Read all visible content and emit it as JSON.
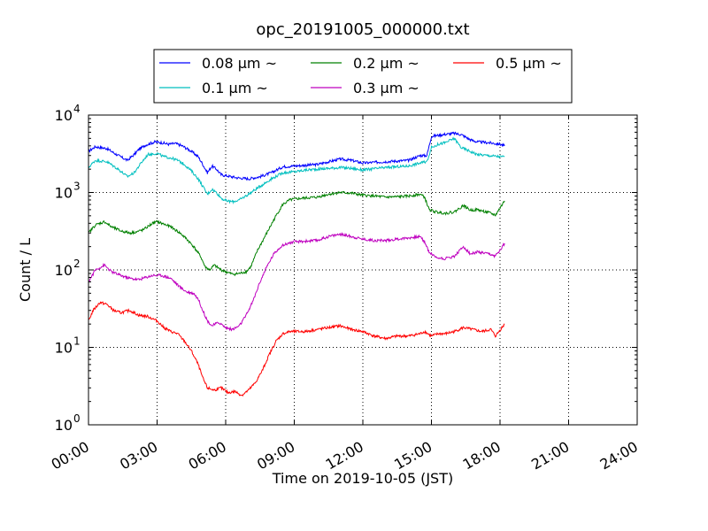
{
  "chart_data": {
    "type": "line",
    "title": "opc_20191005_000000.txt",
    "xlabel": "Time on 2019-10-05 (JST)",
    "ylabel": "Count / L",
    "x_unit": "hours",
    "xlim": [
      0,
      24
    ],
    "ylim": [
      1,
      10000
    ],
    "yscale": "log",
    "grid": true,
    "legend_position": "top-center",
    "x_ticks": [
      0,
      3,
      6,
      9,
      12,
      15,
      18,
      21,
      24
    ],
    "x_tick_labels": [
      "00:00",
      "03:00",
      "06:00",
      "09:00",
      "12:00",
      "15:00",
      "18:00",
      "21:00",
      "24:00"
    ],
    "y_ticks": [
      1,
      10,
      100,
      1000,
      10000
    ],
    "y_tick_labels": [
      {
        "base": "10",
        "exp": "0"
      },
      {
        "base": "10",
        "exp": "1"
      },
      {
        "base": "10",
        "exp": "2"
      },
      {
        "base": "10",
        "exp": "3"
      },
      {
        "base": "10",
        "exp": "4"
      }
    ],
    "series": [
      {
        "name": "0.08 μm ~",
        "color": "#0000ff",
        "x": [
          0,
          0.3,
          0.8,
          1.3,
          1.7,
          2.0,
          2.2,
          2.5,
          2.9,
          3.2,
          3.5,
          3.8,
          4.1,
          4.5,
          4.8,
          5.0,
          5.2,
          5.4,
          5.6,
          5.8,
          6.0,
          6.5,
          7.0,
          7.5,
          8.0,
          8.5,
          9.0,
          10.0,
          11.0,
          11.5,
          12.0,
          13.0,
          14.0,
          14.5,
          14.8,
          15.0,
          15.5,
          16.0,
          16.3,
          16.7,
          17.0,
          17.5,
          18.0,
          18.2
        ],
        "y": [
          3400,
          3900,
          3700,
          3000,
          2600,
          3100,
          3600,
          4100,
          4500,
          4400,
          4200,
          4300,
          4000,
          3400,
          2900,
          2300,
          1800,
          2200,
          2000,
          1700,
          1650,
          1550,
          1500,
          1600,
          1800,
          2150,
          2200,
          2300,
          2700,
          2600,
          2400,
          2500,
          2600,
          3000,
          3000,
          5300,
          5600,
          5800,
          5600,
          4800,
          4500,
          4400,
          4200,
          4000
        ]
      },
      {
        "name": "0.1 μm ~",
        "color": "#00bfbf",
        "x": [
          0,
          0.3,
          0.8,
          1.3,
          1.7,
          2.0,
          2.3,
          2.6,
          3.0,
          3.3,
          3.6,
          3.9,
          4.2,
          4.5,
          4.8,
          5.0,
          5.2,
          5.4,
          5.6,
          5.8,
          6.0,
          6.3,
          6.6,
          7.0,
          7.5,
          8.0,
          8.5,
          9.0,
          9.5,
          10.0,
          11.0,
          11.5,
          12.0,
          13.0,
          14.0,
          14.5,
          14.8,
          15.0,
          15.3,
          15.6,
          16.0,
          16.3,
          16.6,
          17.0,
          17.5,
          18.0,
          18.2
        ],
        "y": [
          2100,
          2600,
          2500,
          2000,
          1600,
          1800,
          2400,
          3100,
          3200,
          2900,
          2800,
          2600,
          2300,
          1900,
          1500,
          1200,
          950,
          1100,
          1000,
          850,
          780,
          760,
          800,
          950,
          1200,
          1500,
          1800,
          1850,
          1950,
          2000,
          2100,
          2050,
          1950,
          2100,
          2200,
          2400,
          2500,
          3800,
          4200,
          4400,
          5000,
          3800,
          3500,
          3100,
          3000,
          2900,
          2900
        ]
      },
      {
        "name": "0.2 μm ~",
        "color": "#008000",
        "x": [
          0,
          0.3,
          0.7,
          1.0,
          1.4,
          1.8,
          2.1,
          2.4,
          2.8,
          3.0,
          3.3,
          3.6,
          4.0,
          4.3,
          4.6,
          4.9,
          5.1,
          5.3,
          5.5,
          5.8,
          6.0,
          6.3,
          6.6,
          6.9,
          7.1,
          7.4,
          7.8,
          8.2,
          8.5,
          8.8,
          9.0,
          9.5,
          10.0,
          10.5,
          11.0,
          11.5,
          12.0,
          12.5,
          13.0,
          13.5,
          14.0,
          14.5,
          14.7,
          14.9,
          15.2,
          15.6,
          16.0,
          16.4,
          16.7,
          17.0,
          17.5,
          17.8,
          18.2
        ],
        "y": [
          300,
          380,
          420,
          360,
          320,
          300,
          310,
          330,
          400,
          420,
          390,
          360,
          300,
          250,
          200,
          150,
          110,
          100,
          115,
          100,
          95,
          88,
          90,
          95,
          110,
          180,
          300,
          500,
          700,
          800,
          820,
          850,
          870,
          950,
          1000,
          980,
          920,
          900,
          870,
          880,
          900,
          950,
          870,
          600,
          560,
          540,
          560,
          680,
          590,
          600,
          550,
          510,
          780
        ]
      },
      {
        "name": "0.3 μm ~",
        "color": "#bf00bf",
        "x": [
          0,
          0.3,
          0.7,
          1.0,
          1.4,
          1.8,
          2.2,
          2.5,
          2.8,
          3.2,
          3.6,
          4.0,
          4.3,
          4.6,
          4.8,
          5.0,
          5.2,
          5.4,
          5.7,
          6.0,
          6.3,
          6.6,
          6.9,
          7.2,
          7.5,
          7.8,
          8.1,
          8.4,
          8.7,
          9.0,
          9.5,
          10.0,
          10.5,
          11.0,
          11.5,
          12.0,
          12.5,
          13.0,
          13.5,
          14.0,
          14.5,
          14.7,
          14.9,
          15.2,
          15.6,
          16.0,
          16.4,
          16.7,
          17.0,
          17.5,
          17.8,
          18.2
        ],
        "y": [
          70,
          100,
          115,
          95,
          85,
          78,
          75,
          80,
          85,
          85,
          78,
          60,
          52,
          50,
          42,
          30,
          22,
          19,
          21,
          18,
          17,
          19,
          26,
          40,
          70,
          110,
          160,
          200,
          220,
          230,
          235,
          240,
          270,
          290,
          270,
          250,
          240,
          240,
          250,
          260,
          270,
          230,
          170,
          145,
          140,
          150,
          200,
          160,
          170,
          160,
          150,
          220
        ]
      },
      {
        "name": "0.5 μm ~",
        "color": "#ff0000",
        "x": [
          0,
          0.2,
          0.5,
          0.8,
          1.1,
          1.4,
          1.8,
          2.2,
          2.6,
          3.0,
          3.3,
          3.6,
          3.9,
          4.2,
          4.5,
          4.8,
          5.0,
          5.2,
          5.5,
          5.8,
          6.1,
          6.4,
          6.7,
          7.0,
          7.3,
          7.6,
          7.9,
          8.2,
          8.5,
          8.8,
          9.0,
          9.5,
          10.0,
          10.5,
          11.0,
          11.5,
          12.0,
          12.5,
          13.0,
          13.5,
          14.0,
          14.5,
          14.7,
          15.0,
          15.3,
          15.6,
          16.0,
          16.4,
          16.8,
          17.2,
          17.6,
          17.8,
          18.2
        ],
        "y": [
          22,
          30,
          38,
          36,
          30,
          28,
          30,
          26,
          25,
          22,
          18,
          16,
          15,
          12,
          9,
          6,
          4,
          3,
          2.8,
          3.0,
          2.6,
          2.7,
          2.4,
          2.8,
          3.5,
          5,
          8,
          12,
          15,
          16,
          16,
          16,
          17,
          18,
          19,
          17,
          16,
          14,
          13,
          14,
          14,
          15,
          16,
          14,
          15,
          15,
          16,
          18,
          17,
          16,
          17,
          14,
          20
        ]
      }
    ]
  }
}
